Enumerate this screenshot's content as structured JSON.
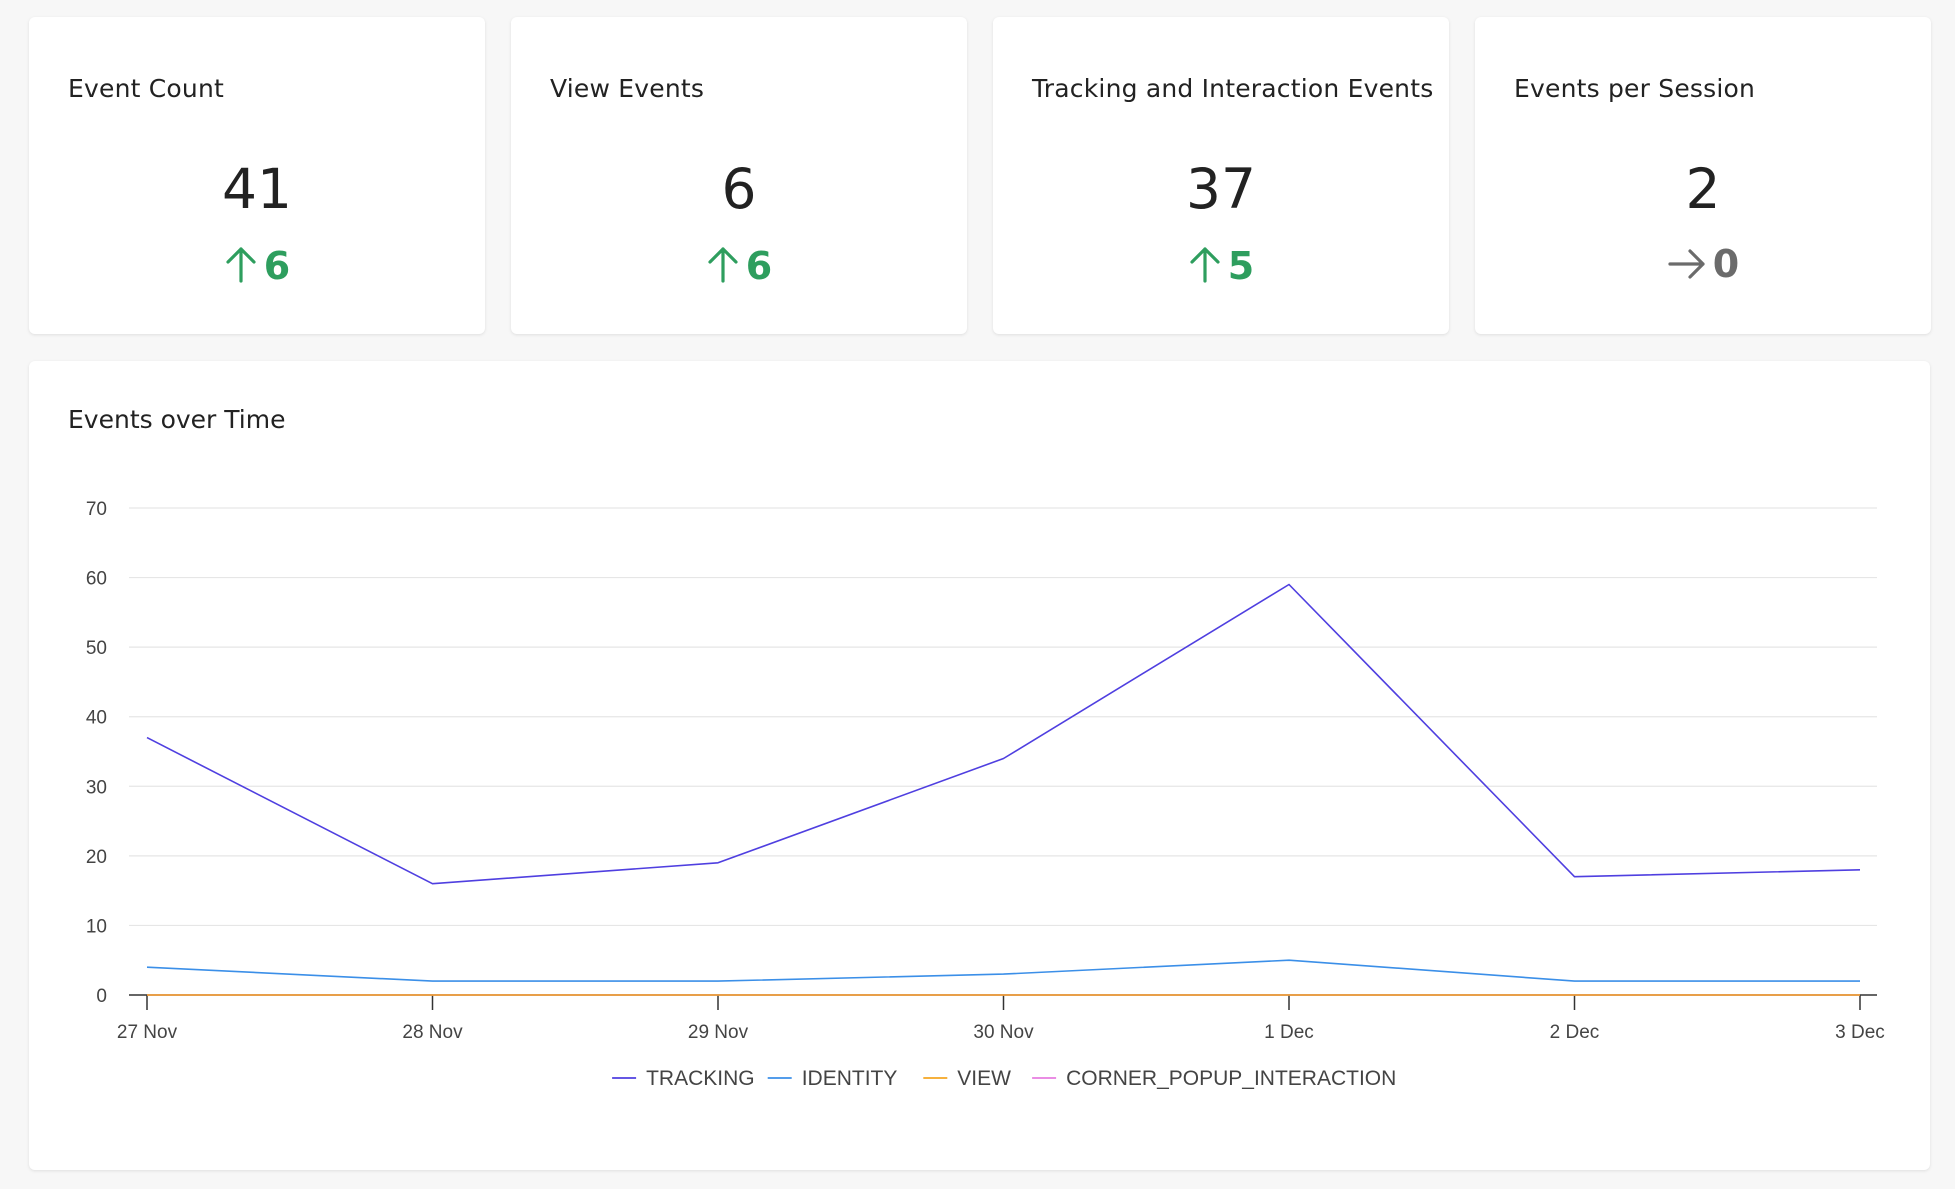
{
  "stats": [
    {
      "title": "Event Count",
      "value": "41",
      "delta": "6",
      "direction": "up",
      "delta_color": "#2e9e5e"
    },
    {
      "title": "View Events",
      "value": "6",
      "delta": "6",
      "direction": "up",
      "delta_color": "#2e9e5e"
    },
    {
      "title": "Tracking and Interaction Events",
      "value": "37",
      "delta": "5",
      "direction": "up",
      "delta_color": "#2e9e5e"
    },
    {
      "title": "Events per Session",
      "value": "2",
      "delta": "0",
      "direction": "flat",
      "delta_color": "#6b6b6b"
    }
  ],
  "chart": {
    "title": "Events over Time"
  },
  "chart_data": {
    "type": "line",
    "title": "Events over Time",
    "x": [
      "27 Nov",
      "28 Nov",
      "29 Nov",
      "30 Nov",
      "1 Dec",
      "2 Dec",
      "3 Dec"
    ],
    "yticks": [
      0,
      10,
      20,
      30,
      40,
      50,
      60,
      70
    ],
    "ylim": [
      0,
      70
    ],
    "grid": true,
    "legend_position": "bottom",
    "series": [
      {
        "name": "TRACKING",
        "color": "#4f3fe0",
        "values": [
          37,
          16,
          19,
          34,
          59,
          17,
          18
        ]
      },
      {
        "name": "IDENTITY",
        "color": "#3b8fe8",
        "values": [
          4,
          2,
          2,
          3,
          5,
          2,
          2
        ]
      },
      {
        "name": "VIEW",
        "color": "#f5a623",
        "values": [
          0,
          0,
          0,
          0,
          0,
          0,
          0
        ]
      },
      {
        "name": "CORNER_POPUP_INTERACTION",
        "color": "#e77de0",
        "values": [
          0,
          0,
          0,
          0,
          0,
          0,
          0
        ]
      }
    ]
  }
}
